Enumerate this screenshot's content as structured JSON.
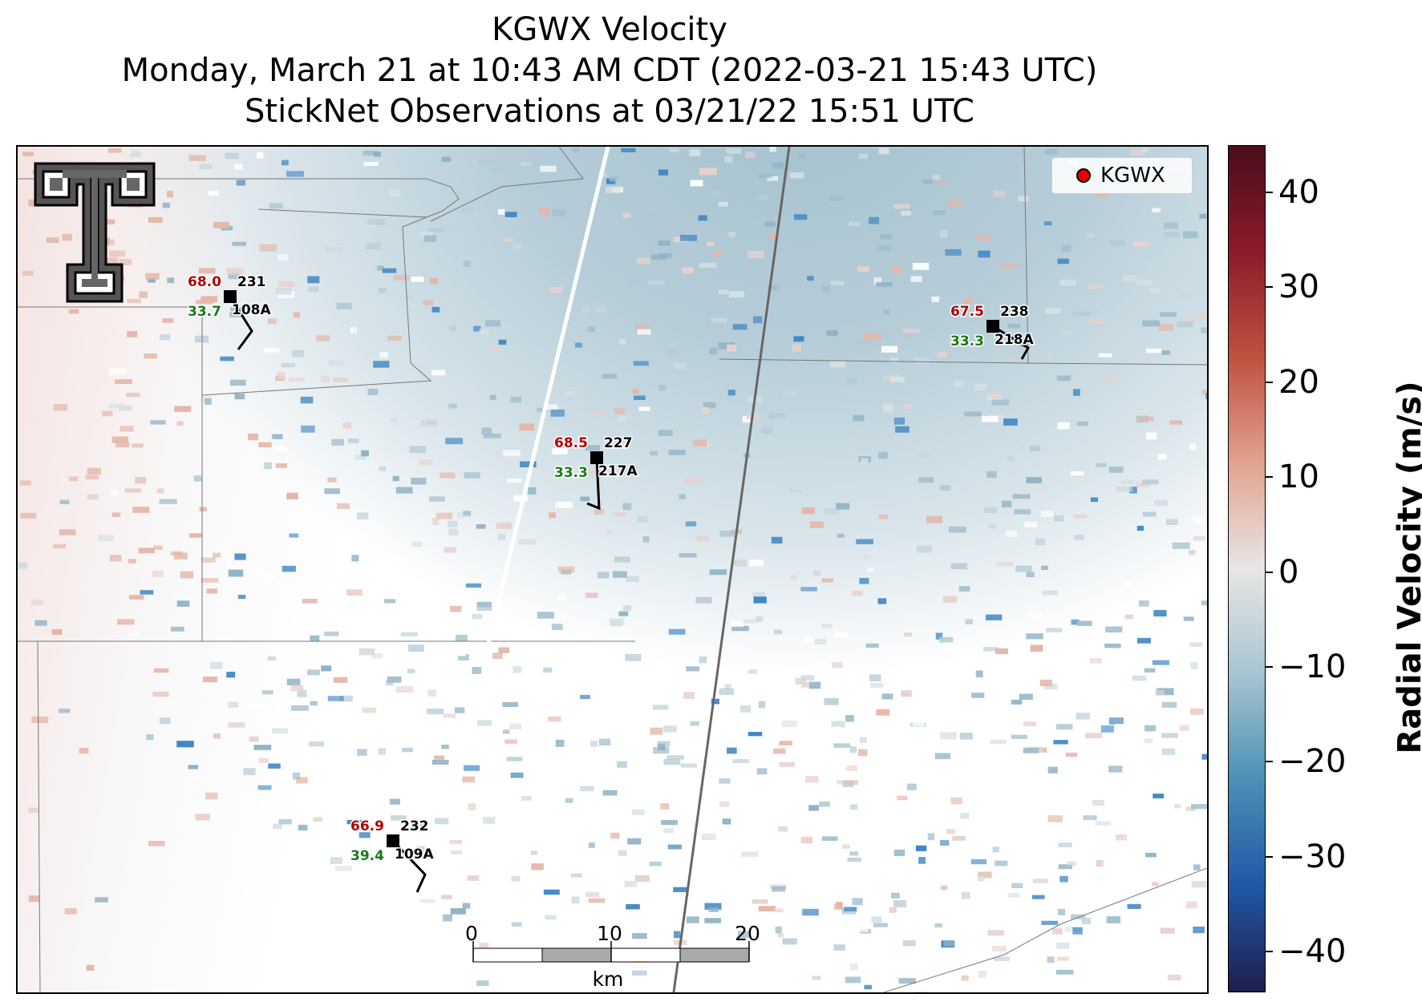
{
  "title": {
    "line1": "KGWX Velocity",
    "line2": "Monday, March 21 at 10:43 AM CDT (2022-03-21 15:43 UTC)",
    "line3": "StickNet Observations at 03/21/22 15:51 UTC"
  },
  "legend": {
    "label": "KGWX",
    "marker_color": "#e60000"
  },
  "colorbar": {
    "label": "Radial Velocity (m/s)",
    "ticks": [
      "40",
      "30",
      "20",
      "10",
      "0",
      "−10",
      "−20",
      "−30",
      "−40"
    ],
    "colors": [
      "#4a0d1a",
      "#8c1a2a",
      "#c0503f",
      "#e2a390",
      "#e8e6e6",
      "#a7c4d1",
      "#4b8fb6",
      "#2157a6",
      "#1e1e4c"
    ]
  },
  "stations": [
    {
      "id": "108A",
      "temp": "68.0",
      "dewpoint": "33.7",
      "direction": "231"
    },
    {
      "id": "218A",
      "temp": "67.5",
      "dewpoint": "33.3",
      "direction": "238"
    },
    {
      "id": "217A",
      "temp": "68.5",
      "dewpoint": "33.3",
      "direction": "227"
    },
    {
      "id": "109A",
      "temp": "66.9",
      "dewpoint": "39.4",
      "direction": "232"
    }
  ],
  "scalebar": {
    "ticks": [
      "0",
      "10",
      "20"
    ],
    "unit": "km"
  },
  "logo": {
    "icon": "texas-tech-double-t-logo"
  }
}
